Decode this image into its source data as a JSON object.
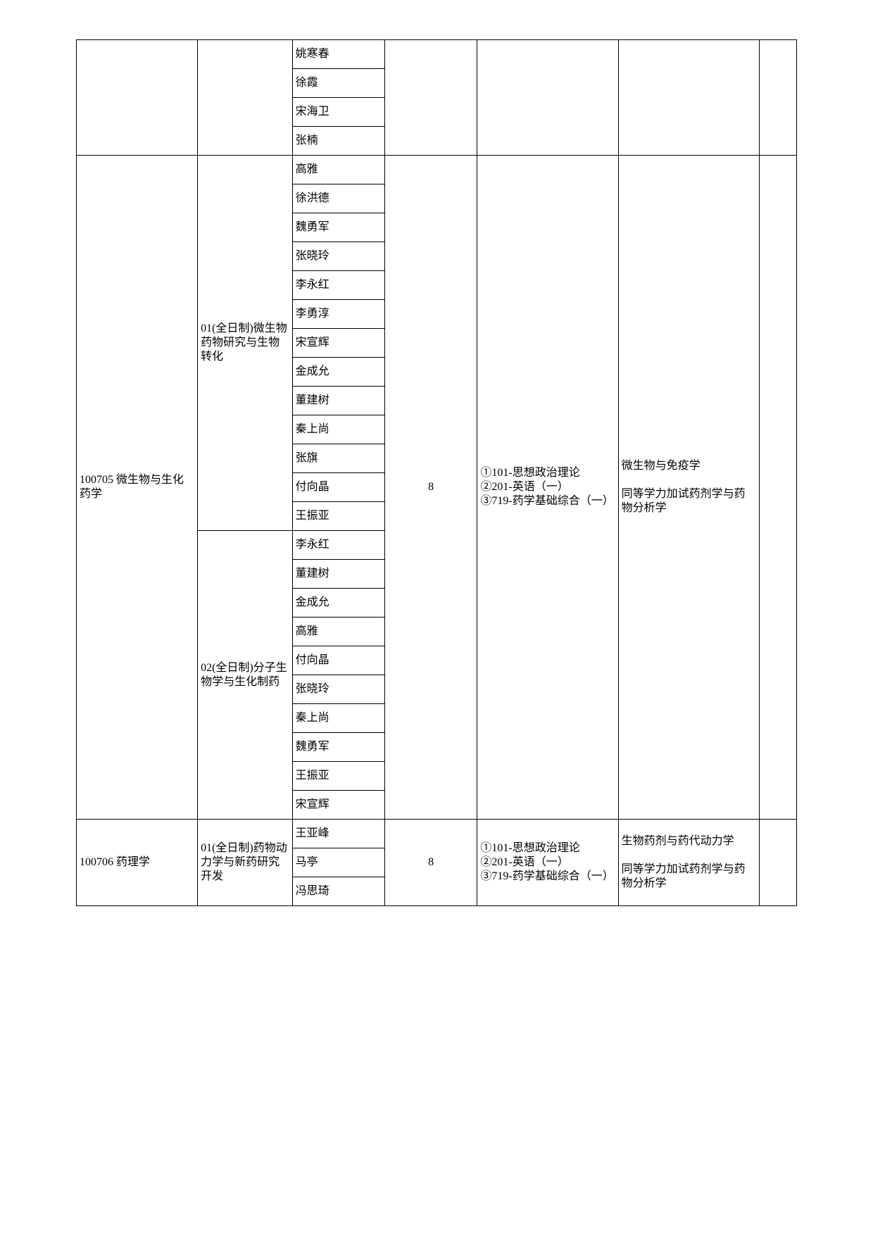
{
  "groups": [
    {
      "col0": "",
      "subgroups": [
        {
          "col1": "",
          "names": [
            "姚寒春",
            "徐霞",
            "宋海卫",
            "张楠"
          ]
        }
      ],
      "col3": "",
      "col4": "",
      "col5": "",
      "col6": ""
    },
    {
      "col0": "100705 微生物与生化药学",
      "subgroups": [
        {
          "col1": "01(全日制)微生物药物研究与生物转化",
          "names": [
            "高雅",
            "徐洪德",
            "魏勇军",
            "张晓玲",
            "李永红",
            "李勇淳",
            "宋宣辉",
            "金成允",
            "董建树",
            "秦上尚",
            "张旗",
            "付向晶",
            "王振亚"
          ]
        },
        {
          "col1": "02(全日制)分子生物学与生化制药",
          "names": [
            "李永红",
            "董建树",
            "金成允",
            "高雅",
            "付向晶",
            "张晓玲",
            "秦上尚",
            "魏勇军",
            "王振亚",
            "宋宣辉"
          ]
        }
      ],
      "col3": "8",
      "col4": "①101-思想政治理论\n②201-英语（一）\n③719-药学基础综合（一）",
      "col5": "微生物与免疫学\n\n同等学力加试药剂学与药物分析学",
      "col6": ""
    },
    {
      "col0": "100706 药理学",
      "subgroups": [
        {
          "col1": "01(全日制)药物动力学与新药研究开发",
          "names": [
            "王亚峰",
            "马亭",
            "冯思琦"
          ]
        }
      ],
      "col3": "8",
      "col4": "①101-思想政治理论\n②201-英语（一）\n③719-药学基础综合（一）",
      "col5": "生物药剂与药代动力学\n\n同等学力加试药剂学与药物分析学",
      "col6": ""
    }
  ]
}
